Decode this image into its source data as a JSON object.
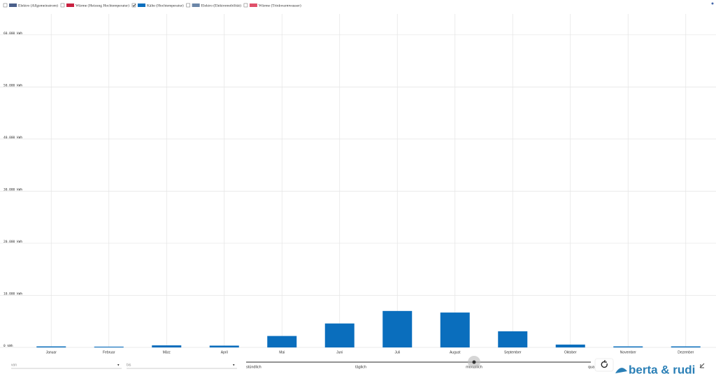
{
  "chart_data": {
    "type": "bar",
    "categories": [
      "Januar",
      "Februar",
      "März",
      "April",
      "Mai",
      "Juni",
      "Juli",
      "August",
      "September",
      "Oktober",
      "November",
      "Dezember"
    ],
    "series": [
      {
        "name": "Elektro (Allgemeinstrom)",
        "color": "#4a5f8a",
        "visible": false
      },
      {
        "name": "Wärme (Heizung Hochtemperatur)",
        "color": "#c8203f",
        "visible": false
      },
      {
        "name": "Kälte (Hochtemperatur)",
        "color": "#0a6ebd",
        "visible": true,
        "values": [
          200,
          150,
          400,
          350,
          2200,
          4600,
          7000,
          6700,
          3100,
          550,
          200,
          200
        ]
      },
      {
        "name": "Elektro (Elektromobilität)",
        "color": "#6b86a8",
        "visible": false
      },
      {
        "name": "Wärme (Trinkwarmwasser)",
        "color": "#e0506a",
        "visible": false
      }
    ],
    "ylim": [
      0,
      64000
    ],
    "yticks": [
      {
        "value": 0,
        "label": "0 kWh"
      },
      {
        "value": 10000,
        "label": "10.000 kWh"
      },
      {
        "value": 20000,
        "label": "20.000 kWh"
      },
      {
        "value": 30000,
        "label": "30.000 kWh"
      },
      {
        "value": 40000,
        "label": "40.000 kWh"
      },
      {
        "value": 50000,
        "label": "50.000 kWh"
      },
      {
        "value": 60000,
        "label": "60.000 kWh"
      }
    ],
    "grid": true
  },
  "controls": {
    "from_label": "von",
    "to_label": "bis",
    "resolutions": [
      "stündlich",
      "täglich",
      "monatlich",
      "quar"
    ],
    "selected_resolution": 2
  },
  "brand": "berta & rudi"
}
